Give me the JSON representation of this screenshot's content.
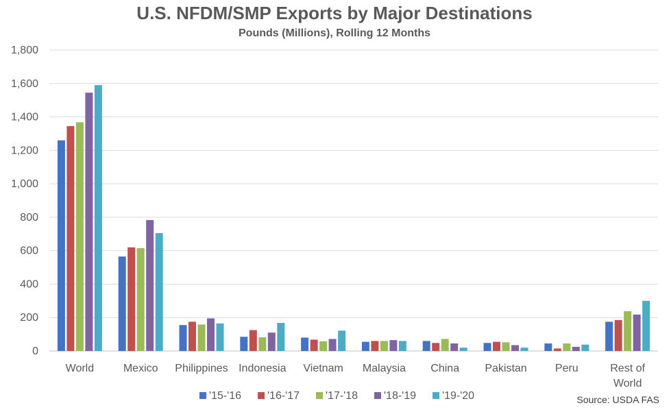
{
  "chart_data": {
    "type": "bar",
    "title": "U.S. NFDM/SMP Exports by Major Destinations",
    "subtitle": "Pounds (Millions), Rolling 12 Months",
    "xlabel": "",
    "ylabel": "",
    "ylim": [
      0,
      1800
    ],
    "yticks": [
      "0",
      "200",
      "400",
      "600",
      "800",
      "1,000",
      "1,200",
      "1,400",
      "1,600",
      "1,800"
    ],
    "ytick_values": [
      0,
      200,
      400,
      600,
      800,
      1000,
      1200,
      1400,
      1600,
      1800
    ],
    "grid": true,
    "legend_position": "bottom",
    "categories": [
      "World",
      "Mexico",
      "Philippines",
      "Indonesia",
      "Vietnam",
      "Malaysia",
      "China",
      "Pakistan",
      "Peru",
      "Rest of World"
    ],
    "series": [
      {
        "name": "'15-'16",
        "color": "#4472C4",
        "values": [
          1260,
          565,
          155,
          85,
          80,
          55,
          60,
          48,
          45,
          175
        ]
      },
      {
        "name": "'16-'17",
        "color": "#C0504D",
        "values": [
          1345,
          620,
          175,
          125,
          68,
          60,
          48,
          55,
          15,
          185
        ]
      },
      {
        "name": "'17-'18",
        "color": "#9BBB59",
        "values": [
          1368,
          615,
          158,
          82,
          58,
          60,
          72,
          52,
          45,
          238
        ]
      },
      {
        "name": "'18-'19",
        "color": "#8064A2",
        "values": [
          1545,
          783,
          195,
          110,
          72,
          65,
          45,
          35,
          25,
          218
        ]
      },
      {
        "name": "'19-'20",
        "color": "#4BACC6",
        "values": [
          1590,
          705,
          165,
          168,
          122,
          60,
          20,
          20,
          38,
          300
        ]
      }
    ]
  },
  "source": "Source: USDA FAS"
}
